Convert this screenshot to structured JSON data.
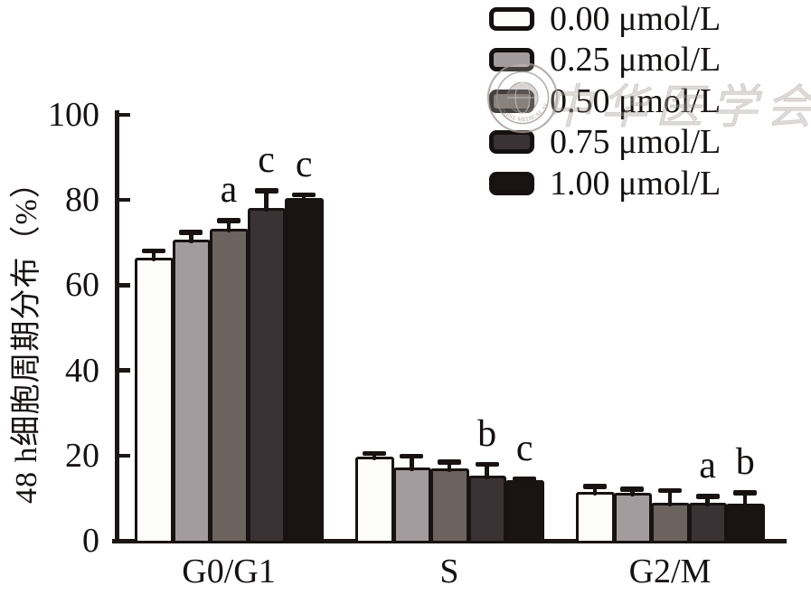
{
  "watermark": {
    "seal_text": "CHINESE MEDICAL ASSOCIATION",
    "calligraphy": "中华医学会"
  },
  "chart_data": {
    "type": "bar",
    "title": "",
    "xlabel": "",
    "ylabel": "48 h细胞周期分布（%）",
    "ylim": [
      0,
      100
    ],
    "yticks": [
      0,
      20,
      40,
      60,
      80,
      100
    ],
    "grid": false,
    "legend_position": "top-right",
    "categories": [
      "G0/G1",
      "S",
      "G2/M"
    ],
    "series": [
      {
        "name": "0.00 μmol/L",
        "color": "#fcfcfa",
        "values": [
          66.5,
          19.8,
          11.4
        ],
        "errors": [
          2.1,
          1.3,
          1.9
        ],
        "annotations": [
          "",
          "",
          ""
        ]
      },
      {
        "name": "0.25 μmol/L",
        "color": "#a39b9e",
        "values": [
          70.6,
          17.1,
          11.2
        ],
        "errors": [
          2.4,
          3.3,
          1.5
        ],
        "annotations": [
          "",
          "",
          ""
        ]
      },
      {
        "name": "0.50 μmol/L",
        "color": "#6c625e",
        "values": [
          73.2,
          16.9,
          9.0
        ],
        "errors": [
          2.5,
          2.2,
          3.4
        ],
        "annotations": [
          "a",
          "",
          ""
        ]
      },
      {
        "name": "0.75 μmol/L",
        "color": "#3a3234",
        "values": [
          78.1,
          15.2,
          8.9
        ],
        "errors": [
          4.7,
          3.3,
          2.1
        ],
        "annotations": [
          "c",
          "b",
          "a"
        ]
      },
      {
        "name": "1.00 μmol/L",
        "color": "#191413",
        "values": [
          80.5,
          14.3,
          8.8
        ],
        "errors": [
          1.3,
          0.7,
          3.0
        ],
        "annotations": [
          "c",
          "c",
          "b"
        ]
      }
    ]
  }
}
